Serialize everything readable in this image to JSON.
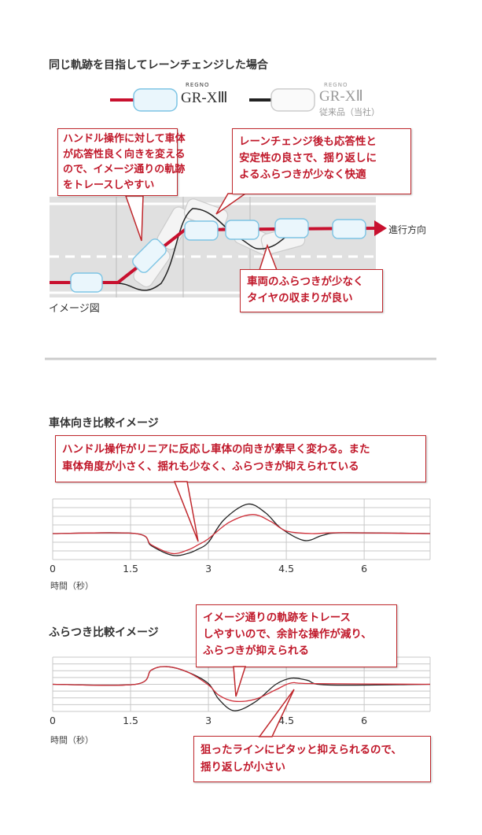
{
  "section1": {
    "title": "同じ軌跡を目指してレーンチェンジした場合",
    "legend": [
      {
        "brand": "REGNO",
        "model": "GR-XⅢ",
        "sub": "",
        "line_color": "#c8102e"
      },
      {
        "brand": "REGNO",
        "model": "GR-XⅡ",
        "sub": "従来品（当社）",
        "line_color": "#222222"
      }
    ],
    "callouts": [
      [
        "ハンドル操作に対して車体",
        "が応答性良く向きを変える",
        "ので、イメージ通りの軌跡",
        "をトレースしやすい"
      ],
      [
        "レーンチェンジ後も応答性と",
        "安定性の良さで、揺り返しに",
        "よるふらつきが少なく快適"
      ],
      [
        "車両のふらつきが少なく",
        "タイヤの収まりが良い"
      ]
    ],
    "direction_label": "進行方向",
    "image_label": "イメージ図"
  },
  "colors": {
    "accent": "#c0182a",
    "new_line": "#d0303a",
    "old_line": "#222222",
    "grid": "#bbbbbb"
  },
  "section2": {
    "title": "車体向き比較イメージ",
    "callout": [
      "ハンドル操作がリニアに反応し車体の向きが素早く変わる。また",
      "車体角度が小さく、揺れも少なく、ふらつきが抑えられている"
    ]
  },
  "section3": {
    "title": "ふらつき比較イメージ",
    "callouts": [
      [
        "イメージ通りの軌跡をトレース",
        "しやすいので、余計な操作が減り、",
        "ふらつきが抑えられる"
      ],
      [
        "狙ったラインにピタッと抑えられるので、",
        "揺り返しが小さい"
      ]
    ]
  },
  "chart_data": [
    {
      "type": "line",
      "title": "車体向き比較イメージ",
      "xlabel": "時間（秒）",
      "xticks": [
        "0",
        "1.5",
        "3",
        "4.5",
        "6"
      ],
      "xlim": [
        0,
        7.27
      ],
      "ylim": [
        -3,
        4
      ],
      "grid": true,
      "series": [
        {
          "color": "#222222",
          "x": [
            0,
            1.6,
            1.9,
            2.3,
            2.6,
            2.8,
            3.0,
            3.3,
            3.75,
            4.1,
            4.4,
            4.85,
            5.2,
            5.6,
            7.27
          ],
          "y": [
            0,
            0,
            -1.4,
            -2.5,
            -2.3,
            -1.8,
            -1.0,
            1.6,
            3.4,
            2.4,
            0.6,
            -0.8,
            -0.2,
            0.1,
            0
          ]
        },
        {
          "color": "#d0303a",
          "x": [
            0,
            1.6,
            1.9,
            2.3,
            2.6,
            2.8,
            3.0,
            3.4,
            3.85,
            4.2,
            4.5,
            5.0,
            5.5,
            7.27
          ],
          "y": [
            0,
            0,
            -1.3,
            -2.3,
            -1.9,
            -1.3,
            -0.6,
            1.3,
            2.2,
            1.4,
            0.3,
            0,
            0.1,
            0
          ]
        }
      ]
    },
    {
      "type": "line",
      "title": "ふらつき比較イメージ",
      "xlabel": "時間（秒）",
      "xticks": [
        "0",
        "1.5",
        "3",
        "4.5",
        "6"
      ],
      "xlim": [
        0,
        7.27
      ],
      "ylim": [
        -4,
        4
      ],
      "grid": true,
      "series": [
        {
          "color": "#222222",
          "x": [
            0,
            1.6,
            1.9,
            2.2,
            2.6,
            3.0,
            3.2,
            3.5,
            3.9,
            4.3,
            4.6,
            4.9,
            5.3,
            7.27
          ],
          "y": [
            0,
            0,
            2.1,
            2.6,
            1.8,
            0.1,
            -2.2,
            -3.9,
            -2.6,
            0,
            0.9,
            0.6,
            -0.1,
            0
          ]
        },
        {
          "color": "#d0303a",
          "x": [
            0,
            1.6,
            1.9,
            2.2,
            2.6,
            3.0,
            3.2,
            3.5,
            3.9,
            4.3,
            4.6,
            5.0,
            7.27
          ],
          "y": [
            0,
            0,
            2.1,
            2.6,
            1.8,
            -0.1,
            -1.6,
            -2.5,
            -2.2,
            -0.8,
            0.2,
            0.1,
            0
          ]
        }
      ]
    }
  ]
}
